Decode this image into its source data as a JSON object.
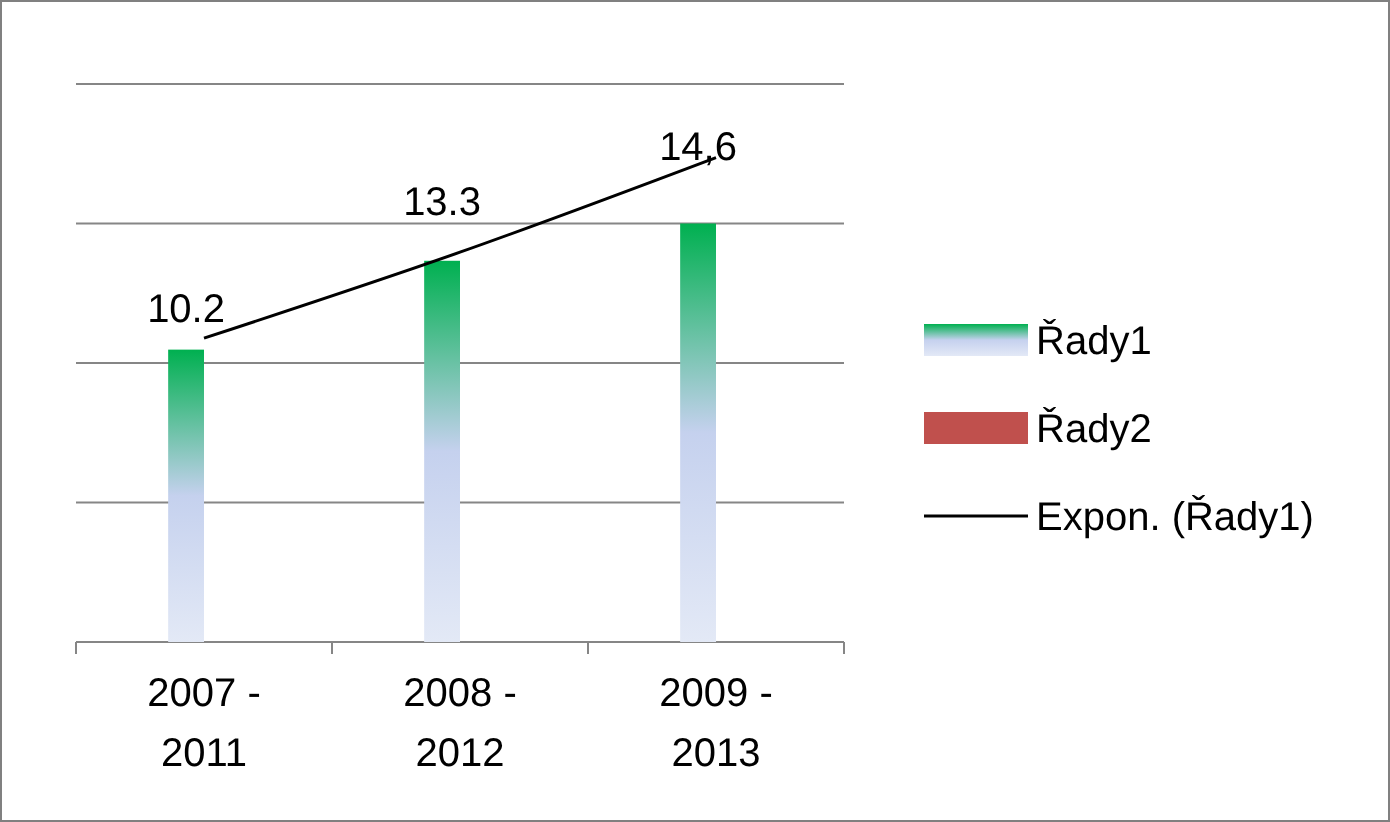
{
  "chart_data": {
    "type": "bar",
    "categories": [
      "2007 - 2011",
      "2008 - 2012",
      "2009 - 2013"
    ],
    "series": [
      {
        "name": "Řady1",
        "color": "#00b050",
        "values": [
          10.2,
          13.3,
          14.6
        ],
        "value_labels": [
          "10.2",
          "13.3",
          "14,6"
        ]
      },
      {
        "name": "Řady2",
        "color": "#c0504d",
        "values": [
          null,
          null,
          null
        ]
      },
      {
        "name": "Expon. (Řady1)",
        "type": "line",
        "color": "#000000",
        "values": [
          10.6,
          13.6,
          16.9
        ]
      }
    ],
    "ylim": [
      0,
      19.467
    ],
    "yticks": [
      {
        "value": 0,
        "label": null
      },
      {
        "value": 4.867,
        "label": null
      },
      {
        "value": 9.733,
        "label": null
      },
      {
        "value": 14.6,
        "label": null
      },
      {
        "value": 19.467,
        "label": null
      }
    ],
    "tick_labels": "x",
    "grid": "y",
    "legend": "right",
    "marker": "none",
    "line_style": "solid"
  }
}
